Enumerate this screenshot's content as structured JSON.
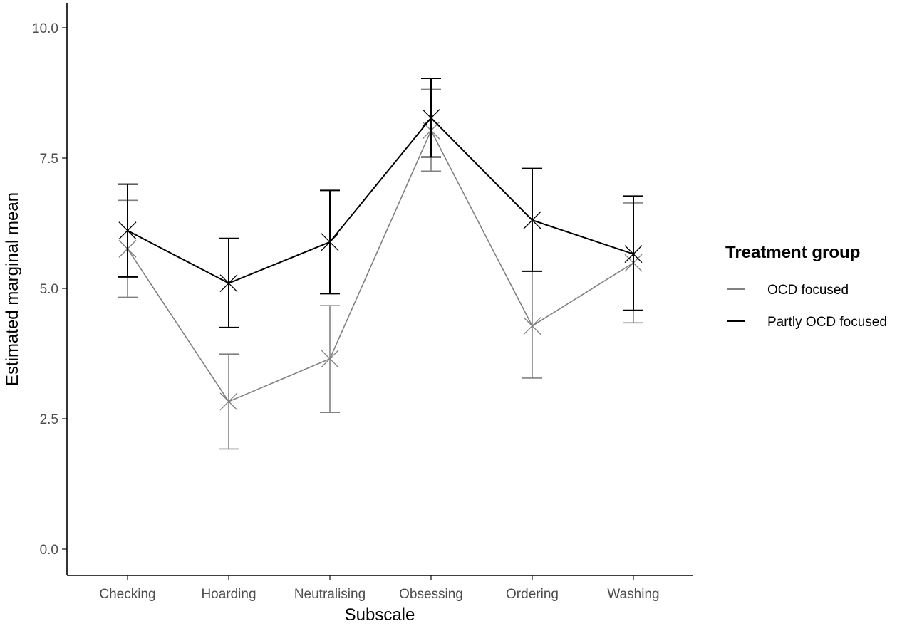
{
  "chart_data": {
    "type": "line",
    "xlabel": "Subscale",
    "ylabel": "Estimated marginal mean",
    "categories": [
      "Checking",
      "Hoarding",
      "Neutralising",
      "Obsessing",
      "Ordering",
      "Washing"
    ],
    "ylim": [
      0,
      10.45
    ],
    "yticks": [
      "0.0",
      "2.5",
      "5.0",
      "7.5",
      "10.0"
    ],
    "legend_title": "Treatment group",
    "legend_position": "right",
    "grid": false,
    "series": [
      {
        "name": "OCD focused",
        "color": "#808080",
        "values": [
          5.76,
          2.83,
          3.65,
          8.03,
          4.28,
          5.49
        ],
        "lower": [
          4.83,
          1.92,
          2.62,
          7.25,
          3.28,
          4.34
        ],
        "upper": [
          6.69,
          3.74,
          4.67,
          8.82,
          5.33,
          6.64
        ]
      },
      {
        "name": "Partly OCD focused",
        "color": "#000000",
        "values": [
          6.11,
          5.1,
          5.89,
          8.27,
          6.31,
          5.66
        ],
        "lower": [
          5.22,
          4.25,
          4.9,
          7.52,
          5.33,
          4.58
        ],
        "upper": [
          7.0,
          5.96,
          6.88,
          9.03,
          7.3,
          6.77
        ]
      }
    ]
  }
}
